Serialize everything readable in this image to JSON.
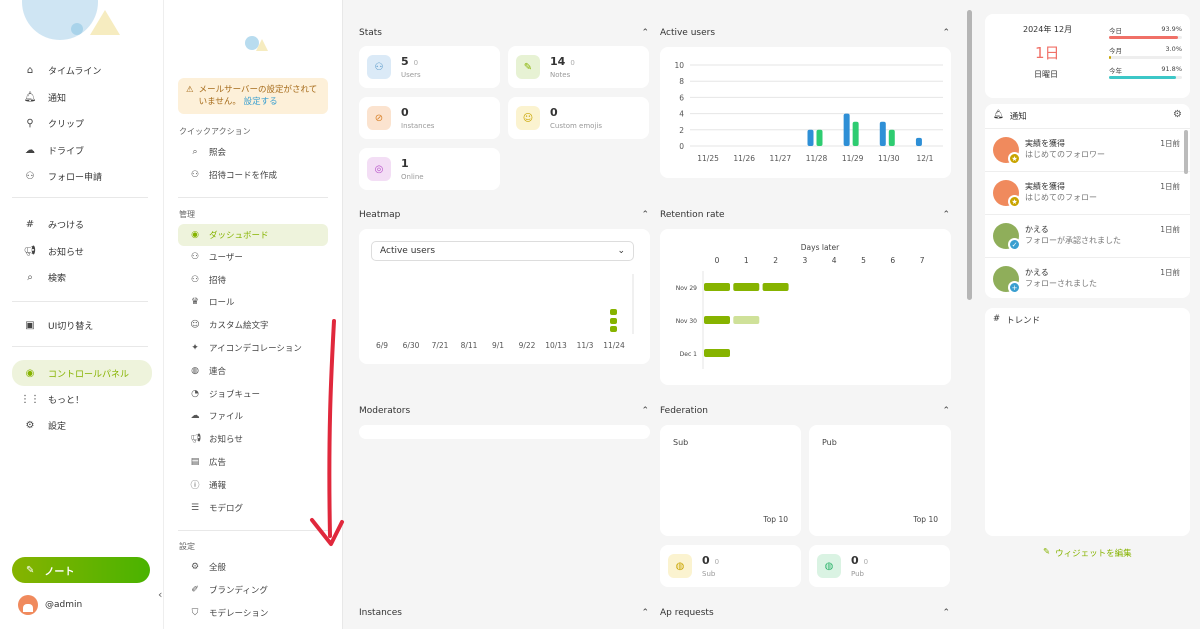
{
  "nav": {
    "items": [
      {
        "label": "タイムライン",
        "icon": "home-icon"
      },
      {
        "label": "通知",
        "icon": "bell-icon"
      },
      {
        "label": "クリップ",
        "icon": "paperclip-icon"
      },
      {
        "label": "ドライブ",
        "icon": "cloud-icon"
      },
      {
        "label": "フォロー申請",
        "icon": "user-plus-icon"
      },
      {
        "label": "みつける",
        "icon": "hash-icon"
      },
      {
        "label": "お知らせ",
        "icon": "speaker-icon"
      },
      {
        "label": "検索",
        "icon": "search-icon"
      },
      {
        "label": "UI切り替え",
        "icon": "device-icon"
      },
      {
        "label": "コントロールパネル",
        "icon": "gauge-icon"
      },
      {
        "label": "もっと！",
        "icon": "grid-icon"
      },
      {
        "label": "設定",
        "icon": "gear-icon"
      }
    ],
    "note_button": "ノート",
    "account": "@admin"
  },
  "admin": {
    "warning_text": "メールサーバーの設定がされていません。",
    "warning_link": "設定する",
    "quick_actions_title": "クイックアクション",
    "quick_actions": [
      {
        "label": "照会",
        "icon": "search-icon"
      },
      {
        "label": "招待コードを作成",
        "icon": "user-plus-icon"
      }
    ],
    "manage_title": "管理",
    "manage_items": [
      {
        "label": "ダッシュボード",
        "icon": "gauge-icon",
        "active": true
      },
      {
        "label": "ユーザー",
        "icon": "users-icon"
      },
      {
        "label": "招待",
        "icon": "user-plus-icon"
      },
      {
        "label": "ロール",
        "icon": "badge-icon"
      },
      {
        "label": "カスタム絵文字",
        "icon": "emoji-icon"
      },
      {
        "label": "アイコンデコレーション",
        "icon": "sparkle-icon"
      },
      {
        "label": "連合",
        "icon": "globe-icon"
      },
      {
        "label": "ジョブキュー",
        "icon": "clock-icon"
      },
      {
        "label": "ファイル",
        "icon": "cloud-icon"
      },
      {
        "label": "お知らせ",
        "icon": "speaker-icon"
      },
      {
        "label": "広告",
        "icon": "ad-icon"
      },
      {
        "label": "通報",
        "icon": "alert-icon"
      },
      {
        "label": "モデログ",
        "icon": "list-search-icon"
      }
    ],
    "settings_title": "設定",
    "settings_items": [
      {
        "label": "全般",
        "icon": "gear-icon"
      },
      {
        "label": "ブランディング",
        "icon": "brush-icon"
      },
      {
        "label": "モデレーション",
        "icon": "shield-icon"
      }
    ]
  },
  "dashboard": {
    "stats_title": "Stats",
    "stats": [
      {
        "value": "5",
        "diff": "0",
        "label": "Users",
        "icon": "users-icon",
        "bg": "#dbeaf7",
        "fg": "#4a90c4"
      },
      {
        "value": "14",
        "diff": "0",
        "label": "Notes",
        "icon": "pencil-icon",
        "bg": "#e7f2d4",
        "fg": "#86b300"
      },
      {
        "value": "0",
        "diff": "",
        "label": "Instances",
        "icon": "planet-icon",
        "bg": "#fbe3cf",
        "fg": "#d9822b"
      },
      {
        "value": "0",
        "diff": "",
        "label": "Custom emojis",
        "icon": "emoji-icon",
        "bg": "#fbf3d0",
        "fg": "#c9a400"
      },
      {
        "value": "1",
        "diff": "",
        "label": "Online",
        "icon": "broadcast-icon",
        "bg": "#f3def5",
        "fg": "#b44ac7"
      }
    ],
    "active_users_title": "Active users",
    "heatmap_title": "Heatmap",
    "heatmap_select": "Active users",
    "heatmap_x": [
      "6/9",
      "6/30",
      "7/21",
      "8/11",
      "9/1",
      "9/22",
      "10/13",
      "11/3",
      "11/24"
    ],
    "retention_title": "Retention rate",
    "retention_axis_label": "Days later",
    "retention_days": [
      "0",
      "1",
      "2",
      "3",
      "4",
      "5",
      "6",
      "7"
    ],
    "retention_rows": [
      {
        "label": "Nov 29",
        "values": [
          1,
          1,
          1
        ]
      },
      {
        "label": "Nov 30",
        "values": [
          1,
          0.4
        ]
      },
      {
        "label": "Dec 1",
        "values": [
          1
        ]
      }
    ],
    "moderators_title": "Moderators",
    "federation_title": "Federation",
    "fed_sub": "Sub",
    "fed_pub": "Pub",
    "fed_top": "Top 10",
    "fed_stats": [
      {
        "value": "0",
        "diff": "0",
        "label": "Sub",
        "icon": "globe-icon",
        "bg": "#fbf3d0",
        "fg": "#c9a400"
      },
      {
        "value": "0",
        "diff": "0",
        "label": "Pub",
        "icon": "globe-icon",
        "bg": "#daf3e3",
        "fg": "#2fb36c"
      }
    ],
    "instances_title": "Instances",
    "ap_requests_title": "Ap requests"
  },
  "chart_data": {
    "type": "bar",
    "title": "Active users",
    "categories": [
      "11/25",
      "11/26",
      "11/27",
      "11/28",
      "11/29",
      "11/30",
      "12/1"
    ],
    "series": [
      {
        "values": [
          0,
          0,
          0,
          2,
          4,
          3,
          1
        ],
        "color": "#2e8fd6"
      },
      {
        "values": [
          0,
          0,
          0,
          2,
          3,
          2,
          0
        ],
        "color": "#2ecc71"
      }
    ],
    "ylim": [
      0,
      10
    ],
    "yticks": [
      "0",
      "2",
      "4",
      "6",
      "8",
      "10"
    ],
    "grid": true
  },
  "right": {
    "date": "2024年 12月",
    "day": "1日",
    "weekday": "日曜日",
    "progress": [
      {
        "label": "今日",
        "value": "93.9%",
        "fraction": 0.939,
        "color": "#f07067"
      },
      {
        "label": "今月",
        "value": "3.0%",
        "fraction": 0.03,
        "color": "#c9a400"
      },
      {
        "label": "今年",
        "value": "91.8%",
        "fraction": 0.918,
        "color": "#3cc7c7"
      }
    ],
    "notifications_title": "通知",
    "notifications": [
      {
        "title": "実績を獲得",
        "body": "はじめてのフォロワー",
        "time": "1日前",
        "avatar_color": "#f08a5d",
        "badge_color": "#c9a400",
        "badge": "★"
      },
      {
        "title": "実績を獲得",
        "body": "はじめてのフォロー",
        "time": "1日前",
        "avatar_color": "#f08a5d",
        "badge_color": "#c9a400",
        "badge": "★"
      },
      {
        "title": "かえる",
        "body": "フォローが承認されました",
        "time": "1日前",
        "avatar_color": "#8fae5a",
        "badge_color": "#3a9fd0",
        "badge": "✓"
      },
      {
        "title": "かえる",
        "body": "フォローされました",
        "time": "1日前",
        "avatar_color": "#8fae5a",
        "badge_color": "#3a9fd0",
        "badge": "+"
      }
    ],
    "trend_title": "トレンド",
    "edit_widgets": "ウィジェットを編集"
  }
}
